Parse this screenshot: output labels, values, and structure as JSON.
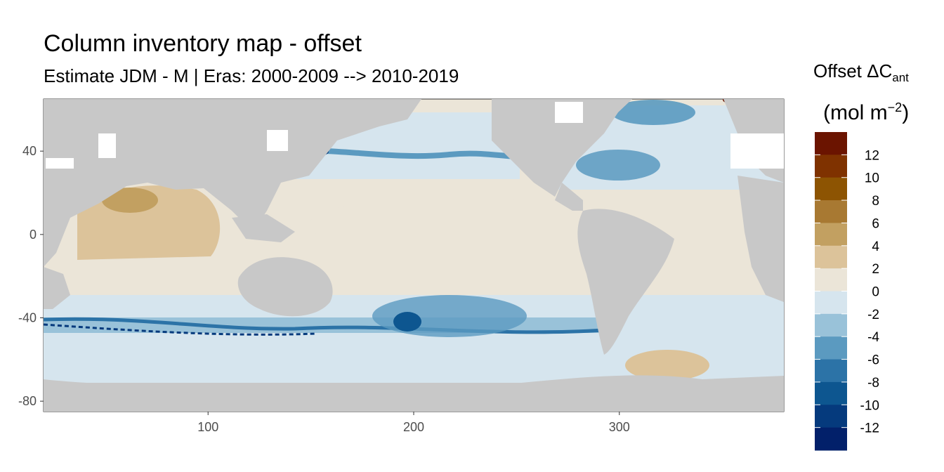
{
  "title": "Column inventory map - offset",
  "subtitle": "Estimate JDM - M | Eras: 2000-2009 --> 2010-2019",
  "legend": {
    "title_main": "Offset ΔC",
    "title_sub": "ant",
    "unit_open": "(mol m",
    "unit_exp": "−2",
    "unit_close": ")",
    "colors": [
      "#6b1400",
      "#7f3200",
      "#8d5402",
      "#a87932",
      "#c2a061",
      "#dcc39a",
      "#ebe5d8",
      "#d6e5ee",
      "#99c2d9",
      "#5b9ac0",
      "#2c73a7",
      "#0d5690",
      "#053a7d",
      "#02206a"
    ],
    "tick_labels": [
      "12",
      "10",
      "8",
      "6",
      "4",
      "2",
      "0",
      "-2",
      "-4",
      "-6",
      "-8",
      "-10",
      "-12"
    ]
  },
  "axes": {
    "x_ticks": [
      "100",
      "200",
      "300"
    ],
    "y_ticks": [
      "40",
      "0",
      "-40",
      "-80"
    ]
  },
  "map_data": {
    "lon_range": [
      20,
      380
    ],
    "lat_range": [
      -85,
      65
    ],
    "land_color": "#c8c8c8",
    "missing_color": "#ffffff"
  }
}
